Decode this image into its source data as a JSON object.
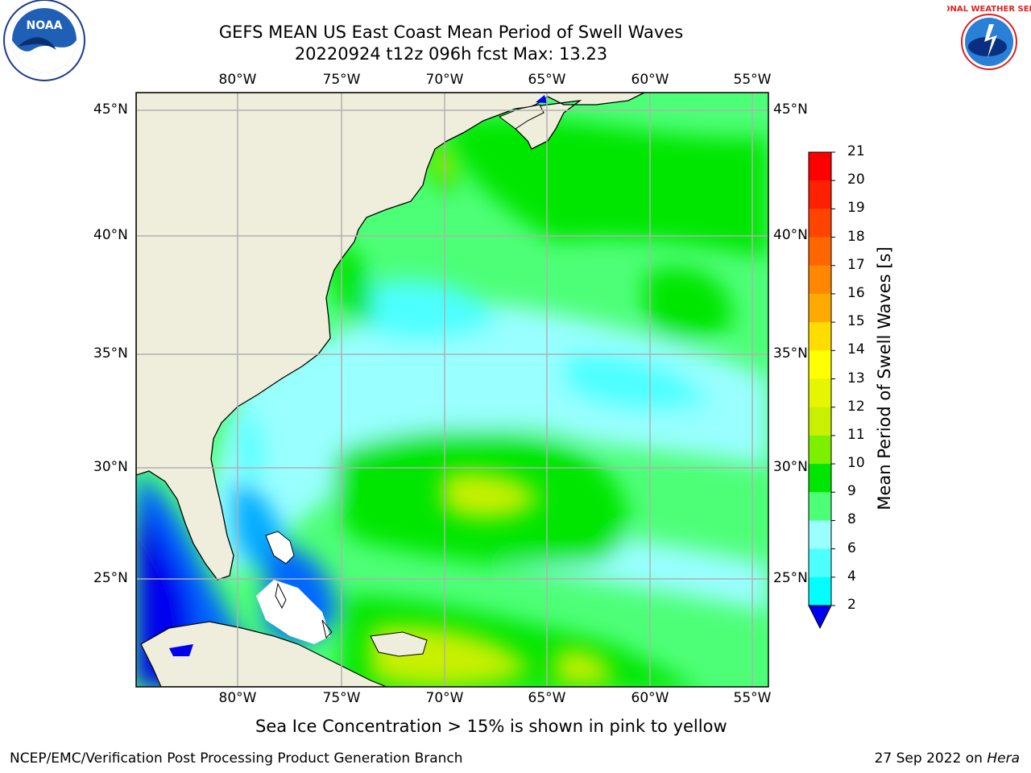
{
  "header": {
    "title_line1": "GEFS MEAN US East Coast Mean Period of Swell Waves",
    "title_line2": "20220924 t12z 096h fcst   Max: 13.23"
  },
  "logos": {
    "left": {
      "icon": "noaa-logo-icon",
      "text": "NOAA"
    },
    "right": {
      "icon": "nws-logo-icon",
      "text": "NATIONAL WEATHER SERVICE"
    }
  },
  "map": {
    "lon_labels": [
      "80°W",
      "75°W",
      "70°W",
      "65°W",
      "60°W",
      "55°W"
    ],
    "lat_labels": [
      "45°N",
      "40°N",
      "35°N",
      "30°N",
      "25°N"
    ],
    "land_color": "#efeedc",
    "grid_color": "#b0b0b0"
  },
  "colorbar": {
    "title": "Mean Period of Swell Waves [s]",
    "ticks": [
      "21",
      "20",
      "19",
      "18",
      "17",
      "16",
      "15",
      "14",
      "13",
      "12",
      "11",
      "10",
      "9",
      "8",
      "6",
      "4",
      "2"
    ],
    "colors": [
      "#ff0000",
      "#ff2000",
      "#ff4400",
      "#ff6600",
      "#ff8800",
      "#ffaa00",
      "#ffdd00",
      "#ffff00",
      "#e6f500",
      "#c8f000",
      "#7df000",
      "#00e600",
      "#4dff77",
      "#99ffff",
      "#4dffff",
      "#00ffff",
      "#00aaff",
      "#0066ff",
      "#0000ee"
    ]
  },
  "notes": {
    "ice": "Sea Ice Concentration > 15% is shown in pink to yellow"
  },
  "footer": {
    "left": "NCEP/EMC/Verification Post Processing Product Generation Branch",
    "right_date": "27 Sep 2022 on ",
    "right_host": "Hera"
  }
}
